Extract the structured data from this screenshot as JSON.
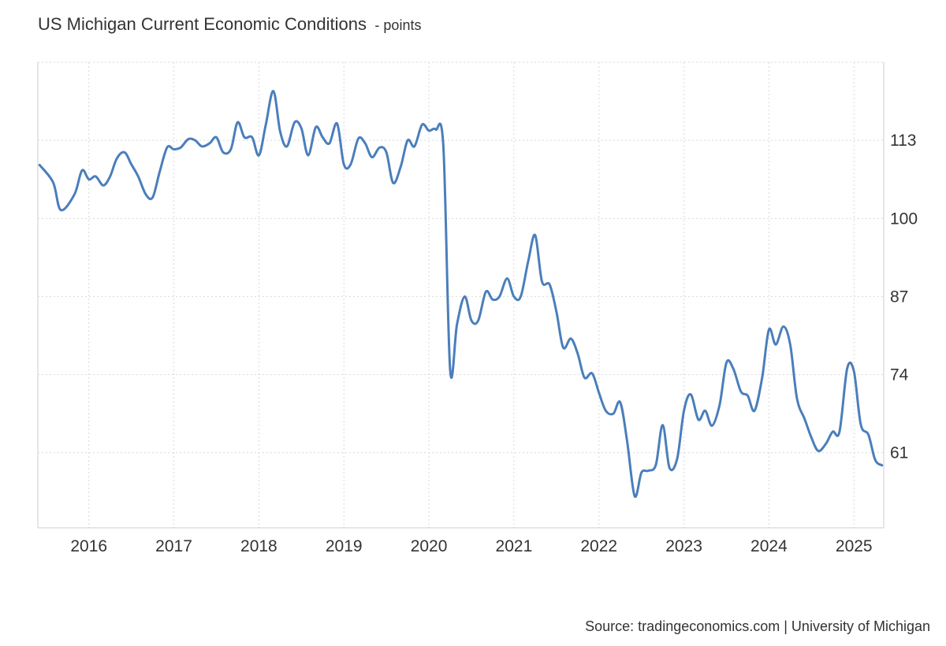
{
  "header": {
    "title": "US Michigan Current Economic Conditions",
    "unit": "- points"
  },
  "footer": {
    "source": "Source: tradingeconomics.com | University of Michigan"
  },
  "colors": {
    "line": "#4a7ebb",
    "grid": "#d9d9d9",
    "axis": "#cccccc",
    "text": "#333333"
  },
  "chart_data": {
    "type": "line",
    "title": "US Michigan Current Economic Conditions",
    "subtitle": "points",
    "xlabel": "",
    "ylabel": "",
    "x_ticks": [
      "2016",
      "2017",
      "2018",
      "2019",
      "2020",
      "2021",
      "2022",
      "2023",
      "2024",
      "2025"
    ],
    "y_ticks": [
      61,
      74,
      87,
      100,
      113
    ],
    "xlim": [
      2015.4,
      2025.35
    ],
    "ylim": [
      48.5,
      126
    ],
    "grid": true,
    "y_axis_position": "right",
    "series": [
      {
        "name": "",
        "points": [
          [
            2015.42,
            108.9
          ],
          [
            2015.58,
            106.0
          ],
          [
            2015.67,
            101.4
          ],
          [
            2015.83,
            104.0
          ],
          [
            2015.92,
            108.0
          ],
          [
            2016.0,
            106.5
          ],
          [
            2016.08,
            107.0
          ],
          [
            2016.17,
            105.5
          ],
          [
            2016.25,
            107.0
          ],
          [
            2016.33,
            110.0
          ],
          [
            2016.42,
            111.0
          ],
          [
            2016.5,
            109.0
          ],
          [
            2016.58,
            107.0
          ],
          [
            2016.67,
            104.0
          ],
          [
            2016.75,
            103.5
          ],
          [
            2016.83,
            107.6
          ],
          [
            2016.92,
            111.8
          ],
          [
            2017.0,
            111.5
          ],
          [
            2017.08,
            111.8
          ],
          [
            2017.17,
            113.2
          ],
          [
            2017.25,
            113.0
          ],
          [
            2017.33,
            112.0
          ],
          [
            2017.42,
            112.5
          ],
          [
            2017.5,
            113.5
          ],
          [
            2017.58,
            111.0
          ],
          [
            2017.67,
            111.5
          ],
          [
            2017.75,
            116.0
          ],
          [
            2017.83,
            113.5
          ],
          [
            2017.92,
            113.5
          ],
          [
            2018.0,
            110.5
          ],
          [
            2018.08,
            115.5
          ],
          [
            2018.17,
            121.2
          ],
          [
            2018.25,
            114.5
          ],
          [
            2018.33,
            112.0
          ],
          [
            2018.42,
            116.0
          ],
          [
            2018.5,
            115.0
          ],
          [
            2018.58,
            110.5
          ],
          [
            2018.67,
            115.2
          ],
          [
            2018.75,
            113.5
          ],
          [
            2018.83,
            112.5
          ],
          [
            2018.92,
            115.8
          ],
          [
            2019.0,
            109.0
          ],
          [
            2019.08,
            109.0
          ],
          [
            2019.17,
            113.3
          ],
          [
            2019.25,
            112.5
          ],
          [
            2019.33,
            110.2
          ],
          [
            2019.42,
            111.8
          ],
          [
            2019.5,
            111.0
          ],
          [
            2019.58,
            105.9
          ],
          [
            2019.67,
            108.7
          ],
          [
            2019.75,
            113.0
          ],
          [
            2019.83,
            112.0
          ],
          [
            2019.92,
            115.6
          ],
          [
            2020.0,
            114.6
          ],
          [
            2020.08,
            114.8
          ],
          [
            2020.17,
            112.0
          ],
          [
            2020.25,
            74.8
          ],
          [
            2020.33,
            82.3
          ],
          [
            2020.42,
            87.0
          ],
          [
            2020.5,
            83.0
          ],
          [
            2020.58,
            83.0
          ],
          [
            2020.67,
            87.8
          ],
          [
            2020.75,
            86.5
          ],
          [
            2020.83,
            87.0
          ],
          [
            2020.92,
            90.0
          ],
          [
            2021.0,
            87.0
          ],
          [
            2021.08,
            87.0
          ],
          [
            2021.17,
            93.0
          ],
          [
            2021.25,
            97.2
          ],
          [
            2021.33,
            89.5
          ],
          [
            2021.42,
            89.0
          ],
          [
            2021.5,
            84.5
          ],
          [
            2021.58,
            78.5
          ],
          [
            2021.67,
            80.0
          ],
          [
            2021.75,
            77.5
          ],
          [
            2021.83,
            73.5
          ],
          [
            2021.92,
            74.2
          ],
          [
            2022.0,
            71.0
          ],
          [
            2022.08,
            68.0
          ],
          [
            2022.17,
            67.5
          ],
          [
            2022.25,
            69.4
          ],
          [
            2022.33,
            63.1
          ],
          [
            2022.42,
            53.8
          ],
          [
            2022.5,
            57.7
          ],
          [
            2022.58,
            58.0
          ],
          [
            2022.67,
            59.0
          ],
          [
            2022.75,
            65.6
          ],
          [
            2022.83,
            58.5
          ],
          [
            2022.92,
            60.0
          ],
          [
            2023.0,
            68.0
          ],
          [
            2023.08,
            70.7
          ],
          [
            2023.17,
            66.5
          ],
          [
            2023.25,
            68.0
          ],
          [
            2023.33,
            65.5
          ],
          [
            2023.42,
            69.0
          ],
          [
            2023.5,
            76.0
          ],
          [
            2023.58,
            75.0
          ],
          [
            2023.67,
            71.2
          ],
          [
            2023.75,
            70.5
          ],
          [
            2023.83,
            68.0
          ],
          [
            2023.92,
            73.5
          ],
          [
            2024.0,
            81.5
          ],
          [
            2024.08,
            79.0
          ],
          [
            2024.17,
            82.0
          ],
          [
            2024.25,
            79.0
          ],
          [
            2024.33,
            70.0
          ],
          [
            2024.42,
            66.6
          ],
          [
            2024.5,
            63.5
          ],
          [
            2024.58,
            61.3
          ],
          [
            2024.67,
            62.5
          ],
          [
            2024.75,
            64.5
          ],
          [
            2024.83,
            64.5
          ],
          [
            2024.92,
            75.0
          ],
          [
            2025.0,
            74.5
          ],
          [
            2025.08,
            65.7
          ],
          [
            2025.17,
            64.0
          ],
          [
            2025.25,
            59.8
          ],
          [
            2025.33,
            58.9
          ]
        ]
      }
    ]
  }
}
